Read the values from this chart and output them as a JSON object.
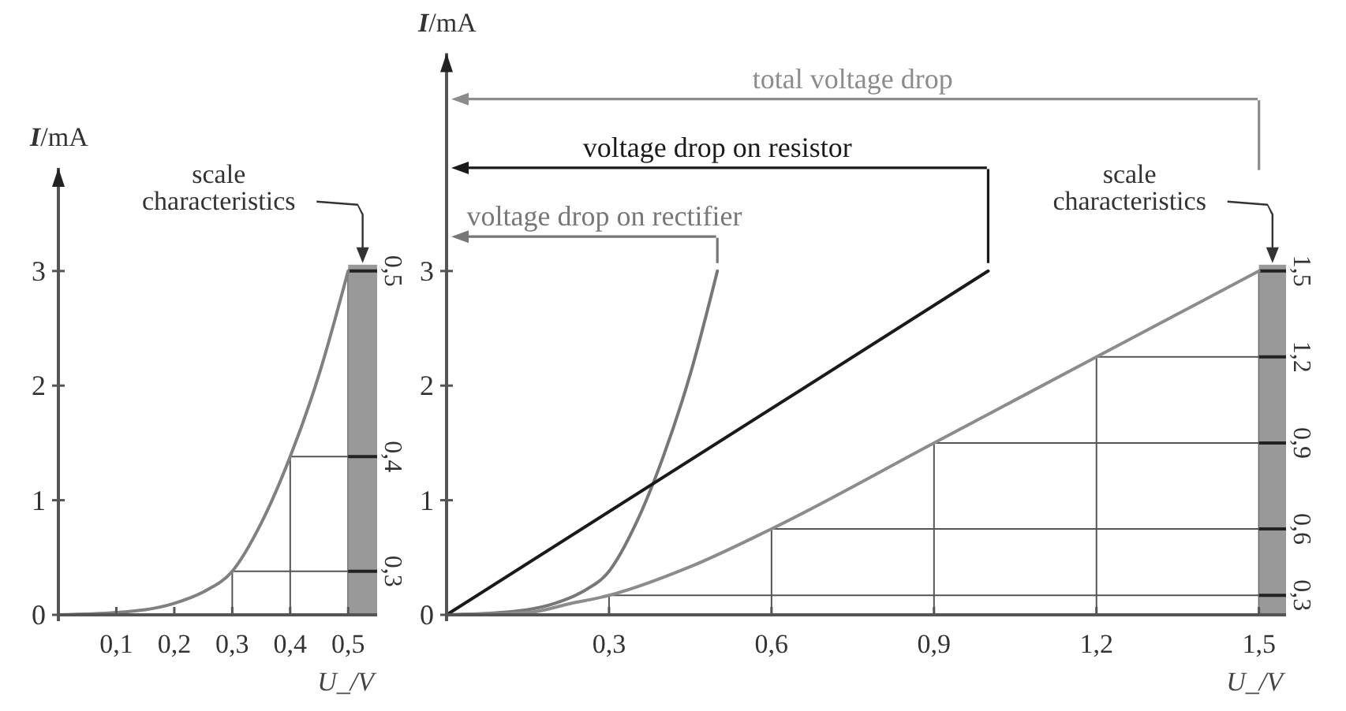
{
  "chart_data": [
    {
      "type": "line",
      "xlabel": "U_/V",
      "ylabel": "I/mA",
      "xlim": [
        0,
        0.55
      ],
      "ylim": [
        0,
        3.9
      ],
      "xticks": [
        {
          "value": 0.1,
          "label": "0,1"
        },
        {
          "value": 0.2,
          "label": "0,2"
        },
        {
          "value": 0.3,
          "label": "0,3"
        },
        {
          "value": 0.4,
          "label": "0,4"
        },
        {
          "value": 0.5,
          "label": "0,5"
        }
      ],
      "yticks": [
        0,
        1,
        2,
        3
      ],
      "series": [
        {
          "color": "#808080",
          "x": [
            0,
            0.1,
            0.2,
            0.25,
            0.3,
            0.35,
            0.4,
            0.45,
            0.5
          ],
          "values": [
            0,
            0.02,
            0.1,
            0.2,
            0.38,
            0.8,
            1.38,
            2.1,
            3.0
          ]
        }
      ],
      "bands": [
        {
          "axis": "x",
          "from": 0.5,
          "to": 0.55,
          "color": "#999999"
        }
      ],
      "annotations": [
        "scale characteristics",
        {
          "text": "0,3",
          "x": 0.3,
          "y": 0.38
        },
        {
          "text": "0,4",
          "x": 0.4,
          "y": 1.38
        },
        {
          "text": "0,5",
          "x": 0.5,
          "y": 3.0
        }
      ]
    },
    {
      "type": "line",
      "xlabel": "U_/V",
      "ylabel": "I/mA",
      "xlim": [
        0,
        1.55
      ],
      "ylim": [
        0,
        4.9
      ],
      "xticks": [
        {
          "value": 0.3,
          "label": "0,3"
        },
        {
          "value": 0.6,
          "label": "0,6"
        },
        {
          "value": 0.9,
          "label": "0,9"
        },
        {
          "value": 1.2,
          "label": "1,2"
        },
        {
          "value": 1.5,
          "label": "1,5"
        }
      ],
      "yticks": [
        0,
        1,
        2,
        3
      ],
      "series": [
        {
          "name": "voltage drop on rectifier",
          "color": "#777777",
          "x": [
            0,
            0.1,
            0.2,
            0.25,
            0.3,
            0.35,
            0.4,
            0.45,
            0.5
          ],
          "values": [
            0,
            0.02,
            0.1,
            0.2,
            0.38,
            0.8,
            1.38,
            2.1,
            3.0
          ]
        },
        {
          "name": "voltage drop on resistor",
          "color": "#1a1a1a",
          "x": [
            0,
            1.0
          ],
          "values": [
            0,
            3.0
          ]
        },
        {
          "name": "total voltage drop",
          "color": "#8c8c8c",
          "x": [
            0,
            0.15,
            0.23,
            0.3,
            0.45,
            0.6,
            0.9,
            1.2,
            1.5
          ],
          "values": [
            0,
            0.02,
            0.1,
            0.17,
            0.42,
            0.75,
            1.5,
            2.25,
            3.0
          ]
        }
      ],
      "bands": [
        {
          "axis": "x",
          "from": 1.5,
          "to": 1.55,
          "color": "#999999"
        }
      ],
      "annotations": [
        "scale characteristics",
        {
          "text": "0,3",
          "x": 0.3,
          "y": 0.17
        },
        {
          "text": "0,6",
          "x": 0.6,
          "y": 0.75
        },
        {
          "text": "0,9",
          "x": 0.9,
          "y": 1.5
        },
        {
          "text": "1,2",
          "x": 1.2,
          "y": 2.25
        },
        {
          "text": "1,5",
          "x": 1.5,
          "y": 3.0
        }
      ]
    }
  ]
}
